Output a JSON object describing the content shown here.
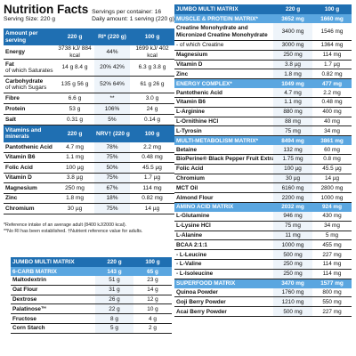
{
  "nutrition": {
    "title": "Nutrition Facts",
    "serving_size": "Serving Size: 220 g",
    "servings_per_container": "Servings per container: 16",
    "daily_amount": "Daily amount: 1 serving (220 g)",
    "header": {
      "label": "Amount per serving",
      "c1": "220 g",
      "c2": "RI* (220 g)",
      "c3": "100 g"
    },
    "rows": [
      {
        "label": "Energy",
        "sub": "",
        "c1": "3738 kJ/ 884 kcal",
        "c2": "44%",
        "c3": "1699 kJ/ 402 kcal"
      },
      {
        "label": "Fat",
        "sub": "of which Saturates",
        "c1": "14 g 8.4 g",
        "c2": "20% 42%",
        "c3": "6.3 g 3.8 g"
      },
      {
        "label": "Carbohydrate",
        "sub": "of which Sugars",
        "c1": "135 g 56 g",
        "c2": "52% 64%",
        "c3": "61 g 26 g"
      },
      {
        "label": "Fibre",
        "sub": "",
        "c1": "6.6 g",
        "c2": "**",
        "c3": "3.0 g"
      },
      {
        "label": "Protein",
        "sub": "",
        "c1": "53 g",
        "c2": "106%",
        "c3": "24 g"
      },
      {
        "label": "Salt",
        "sub": "",
        "c1": "0.31 g",
        "c2": "5%",
        "c3": "0.14 g"
      }
    ],
    "vitamins_header": {
      "label": "Vitamins and minerals",
      "c1": "220 g",
      "c2": "NRV† (220 g)",
      "c3": "100 g"
    },
    "vitamins": [
      {
        "label": "Pantothenic Acid",
        "c1": "4.7 mg",
        "c2": "78%",
        "c3": "2.2 mg"
      },
      {
        "label": "Vitamin B6",
        "c1": "1.1 mg",
        "c2": "75%",
        "c3": "0.48 mg"
      },
      {
        "label": "Folic Acid",
        "c1": "100 µg",
        "c2": "50%",
        "c3": "45.5 µg"
      },
      {
        "label": "Vitamin D",
        "c1": "3.8 µg",
        "c2": "75%",
        "c3": "1.7 µg"
      },
      {
        "label": "Magnesium",
        "c1": "250 mg",
        "c2": "67%",
        "c3": "114 mg"
      },
      {
        "label": "Zinc",
        "c1": "1.8 mg",
        "c2": "18%",
        "c3": "0.82 mg"
      },
      {
        "label": "Chromium",
        "c1": "30 µg",
        "c2": "75%",
        "c3": "14 µg"
      }
    ],
    "notes": [
      "*Reference intake of an average adult (8400 kJ/2000 kcal).",
      "**No RI has been established. †Nutrient reference value for adults."
    ]
  },
  "matrix_left": {
    "header": {
      "name": "JUMBO MULTI MATRIX",
      "a": "220 g",
      "b": "100 g"
    },
    "sections": [
      {
        "name": "6-CARB MATRIX",
        "a": "143 g",
        "b": "65 g",
        "items": [
          {
            "name": "Maltodextrin",
            "a": "51 g",
            "b": "23 g"
          },
          {
            "name": "Oat Flour",
            "a": "31 g",
            "b": "14 g"
          },
          {
            "name": "Dextrose",
            "a": "26 g",
            "b": "12 g"
          },
          {
            "name": "Palatinose™",
            "a": "22 g",
            "b": "10 g"
          },
          {
            "name": "Fructose",
            "a": "8 g",
            "b": "4 g"
          },
          {
            "name": "Corn Starch",
            "a": "5 g",
            "b": "2 g"
          }
        ]
      }
    ]
  },
  "matrix_right": {
    "header": {
      "name": "JUMBO MULTI MATRIX",
      "a": "220 g",
      "b": "100 g"
    },
    "sections": [
      {
        "name": "MUSCLE & PROTEIN MATRIX*",
        "a": "3652 mg",
        "b": "1660 mg",
        "items": [
          {
            "name": "Creatine Monohydrate and Micronized Creatine Monohydrate",
            "a": "3400 mg",
            "b": "1546 mg",
            "tall": true
          },
          {
            "name": "- of which Creatine",
            "a": "3000 mg",
            "b": "1364 mg",
            "plain": true
          },
          {
            "name": "Magnesium",
            "a": "250 mg",
            "b": "114 mg"
          },
          {
            "name": "Vitamin D",
            "a": "3.8 µg",
            "b": "1.7 µg"
          },
          {
            "name": "Zinc",
            "a": "1.8 mg",
            "b": "0.82 mg"
          }
        ]
      },
      {
        "name": "ENERGY COMPLEX*",
        "a": "1049 mg",
        "b": "477 mg",
        "items": [
          {
            "name": "Pantothenic Acid",
            "a": "4.7 mg",
            "b": "2.2 mg"
          },
          {
            "name": "Vitamin B6",
            "a": "1.1 mg",
            "b": "0.48 mg"
          },
          {
            "name": "L-Arginine",
            "a": "880 mg",
            "b": "400 mg"
          },
          {
            "name": "L-Ornithine HCl",
            "a": "88 mg",
            "b": "40 mg"
          },
          {
            "name": "L-Tyrosin",
            "a": "75 mg",
            "b": "34 mg"
          }
        ]
      },
      {
        "name": "MULTI-METABOLISM MATRIX*",
        "a": "8494 mg",
        "b": "3861 mg",
        "items": [
          {
            "name": "Betaine",
            "a": "132 mg",
            "b": "60 mg"
          },
          {
            "name": "BioPerine® Black Pepper Fruit Extract",
            "a": "1.75 mg",
            "b": "0.8 mg"
          },
          {
            "name": "Folic Acid",
            "a": "100 µg",
            "b": "45.5 µg"
          },
          {
            "name": "Chromium",
            "a": "30 µg",
            "b": "14 µg"
          },
          {
            "name": "MCT Oil",
            "a": "6160 mg",
            "b": "2800 mg"
          },
          {
            "name": "Almond Flour",
            "a": "2200 mg",
            "b": "1000 mg"
          }
        ]
      },
      {
        "name": "AMINO ACID MATRIX",
        "a": "2032 mg",
        "b": "924 mg",
        "items": [
          {
            "name": "L-Glutamine",
            "a": "946 mg",
            "b": "430 mg"
          },
          {
            "name": "L-Lysine HCl",
            "a": "75 mg",
            "b": "34 mg"
          },
          {
            "name": "L-Alanine",
            "a": "11 mg",
            "b": "5 mg"
          },
          {
            "name": "BCAA 2:1:1",
            "a": "1000 mg",
            "b": "455 mg"
          },
          {
            "name": "- L-Leucine",
            "a": "500 mg",
            "b": "227 mg"
          },
          {
            "name": "- L-Valine",
            "a": "250 mg",
            "b": "114 mg"
          },
          {
            "name": "- L-Isoleucine",
            "a": "250 mg",
            "b": "114 mg"
          }
        ]
      },
      {
        "name": "SUPERFOOD MATRIX",
        "a": "3470 mg",
        "b": "1577 mg",
        "items": [
          {
            "name": "Quinoa Powder",
            "a": "1760 mg",
            "b": "800 mg"
          },
          {
            "name": "Goji Berry Powder",
            "a": "1210 mg",
            "b": "550 mg"
          },
          {
            "name": "Acai Berry Powder",
            "a": "500 mg",
            "b": "227 mg"
          }
        ]
      }
    ]
  }
}
